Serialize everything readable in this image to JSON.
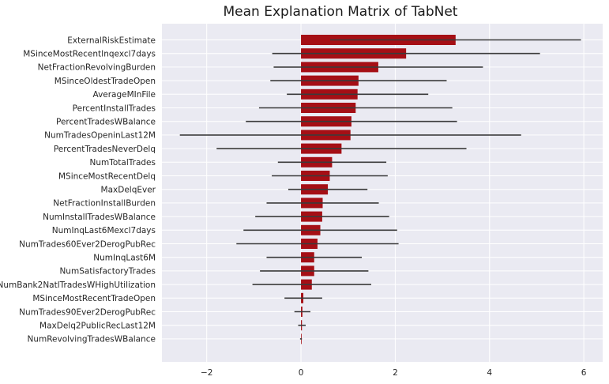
{
  "chart_data": {
    "type": "bar",
    "orientation": "horizontal",
    "title": "Mean Explanation Matrix of TabNet",
    "xlabel": "",
    "ylabel": "",
    "xlim": [
      -2.95,
      6.4
    ],
    "xticks": [
      -2,
      0,
      2,
      4,
      6
    ],
    "grid": true,
    "colors": {
      "bar": "#a50f15",
      "error": "#3b3b3b",
      "plot_bg": "#eaeaf2",
      "grid": "#ffffff"
    },
    "categories": [
      "ExternalRiskEstimate",
      "MSinceMostRecentInqexcl7days",
      "NetFractionRevolvingBurden",
      "MSinceOldestTradeOpen",
      "AverageMInFile",
      "PercentInstallTrades",
      "PercentTradesWBalance",
      "NumTradesOpeninLast12M",
      "PercentTradesNeverDelq",
      "NumTotalTrades",
      "MSinceMostRecentDelq",
      "MaxDelqEver",
      "NetFractionInstallBurden",
      "NumInstallTradesWBalance",
      "NumInqLast6Mexcl7days",
      "NumTrades60Ever2DerogPubRec",
      "NumInqLast6M",
      "NumSatisfactoryTrades",
      "NumBank2NatlTradesWHighUtilization",
      "MSinceMostRecentTradeOpen",
      "NumTrades90Ever2DerogPubRec",
      "MaxDelq2PublicRecLast12M",
      "NumRevolvingTradesWBalance"
    ],
    "values": [
      3.28,
      2.23,
      1.64,
      1.22,
      1.2,
      1.16,
      1.07,
      1.05,
      0.86,
      0.66,
      0.61,
      0.57,
      0.46,
      0.45,
      0.41,
      0.35,
      0.28,
      0.28,
      0.23,
      0.05,
      0.03,
      0.02,
      0.0
    ],
    "error": [
      2.66,
      2.84,
      2.22,
      1.87,
      1.5,
      2.05,
      2.24,
      3.62,
      2.65,
      1.15,
      1.23,
      0.84,
      1.19,
      1.42,
      1.63,
      1.72,
      1.01,
      1.15,
      1.26,
      0.4,
      0.17,
      0.08,
      0.02
    ]
  }
}
